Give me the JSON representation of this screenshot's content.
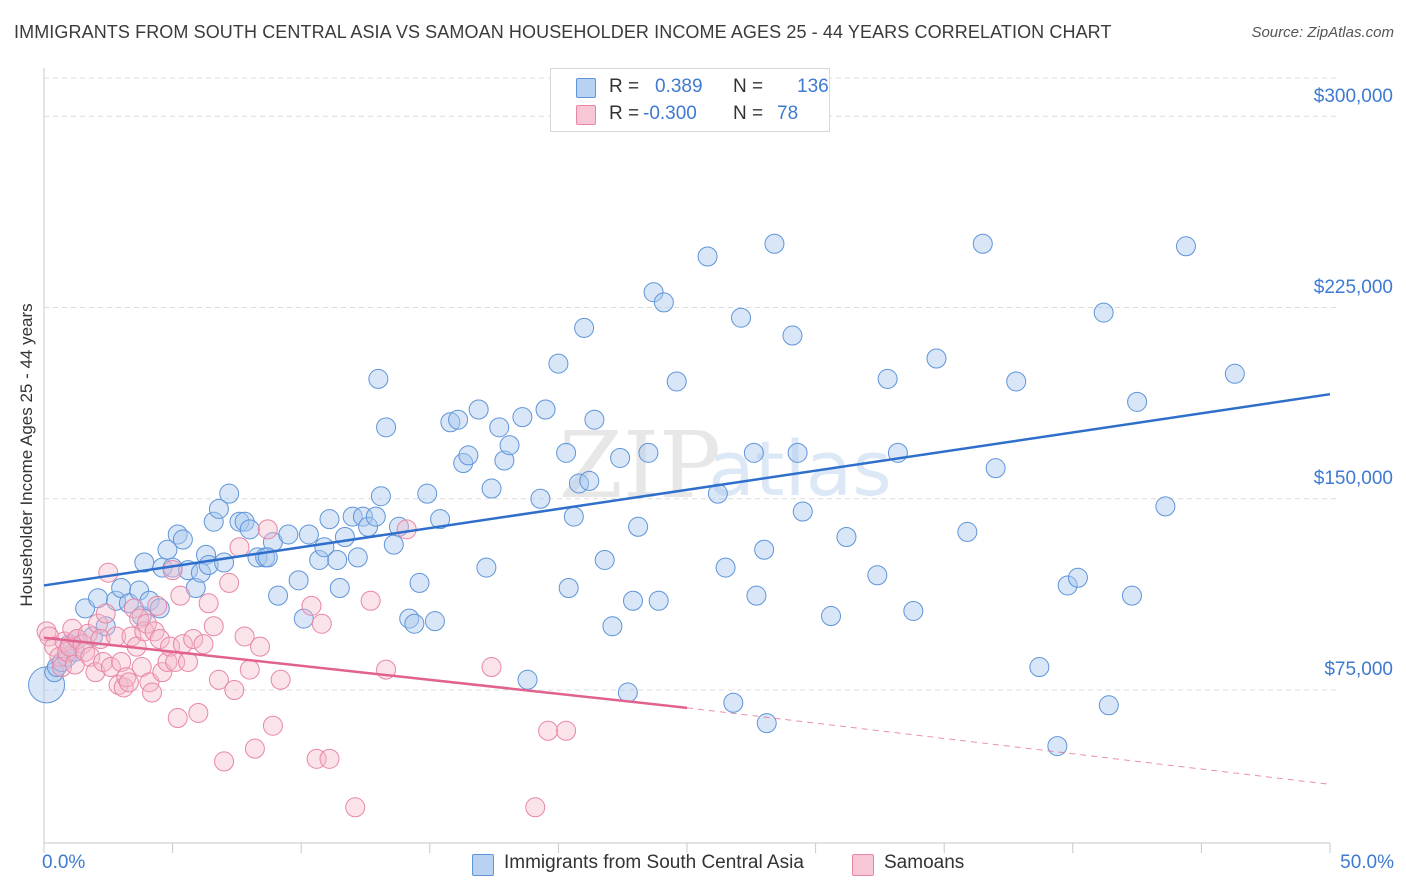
{
  "title": "IMMIGRANTS FROM SOUTH CENTRAL ASIA VS SAMOAN HOUSEHOLDER INCOME AGES 25 - 44 YEARS CORRELATION CHART",
  "source": "Source: ZipAtlas.com",
  "watermark": {
    "zip": "ZIP",
    "atlas": "atlas"
  },
  "legend_top": {
    "rows": [
      {
        "r_label": "R =",
        "r_value": "0.389",
        "n_label": "N =",
        "n_value": "136"
      },
      {
        "r_label": "R =",
        "r_value": "-0.300",
        "n_label": "N =",
        "n_value": "78"
      }
    ]
  },
  "legend_bottom": [
    "Immigrants from South Central Asia",
    "Samoans"
  ],
  "colors": {
    "blue_fill": "#a9c7ee",
    "blue_stroke": "#5f95d9",
    "blue_line": "#2f6fcc",
    "pink_fill": "#f5b8cb",
    "pink_stroke": "#e886a6",
    "pink_line": "#e0628d",
    "axis_text": "#3e7ad1",
    "grid": "#dcdcdc"
  },
  "chart_data": {
    "type": "scatter",
    "title": "IMMIGRANTS FROM SOUTH CENTRAL ASIA VS SAMOAN HOUSEHOLDER INCOME AGES 25 - 44 YEARS CORRELATION CHART",
    "xlabel": "",
    "ylabel": "Householder Income Ages 25 - 44 years",
    "xlim": [
      0,
      50
    ],
    "ylim": [
      15000,
      315000
    ],
    "x_tick_labels": [
      "0.0%",
      "50.0%"
    ],
    "y_ticks": [
      75000,
      150000,
      225000,
      300000
    ],
    "y_tick_labels": [
      "$75,000",
      "$150,000",
      "$225,000",
      "$300,000"
    ],
    "grid": true,
    "legend_position": "top-center",
    "series": [
      {
        "name": "Immigrants from South Central Asia",
        "R": 0.389,
        "N": 136,
        "trend": {
          "x": [
            0,
            50
          ],
          "y": [
            116000,
            191000
          ]
        },
        "points": [
          [
            0.1,
            77000
          ],
          [
            0.4,
            82000
          ],
          [
            0.5,
            84000
          ],
          [
            0.7,
            86000
          ],
          [
            0.9,
            88000
          ],
          [
            1.0,
            93000
          ],
          [
            1.2,
            90000
          ],
          [
            1.3,
            95000
          ],
          [
            1.6,
            107000
          ],
          [
            1.9,
            96000
          ],
          [
            2.1,
            111000
          ],
          [
            2.4,
            100000
          ],
          [
            2.8,
            110000
          ],
          [
            3.0,
            115000
          ],
          [
            3.3,
            109000
          ],
          [
            3.7,
            114000
          ],
          [
            3.8,
            104000
          ],
          [
            3.9,
            125000
          ],
          [
            4.1,
            110000
          ],
          [
            4.6,
            123000
          ],
          [
            4.5,
            107000
          ],
          [
            4.8,
            130000
          ],
          [
            5.0,
            123000
          ],
          [
            5.2,
            136000
          ],
          [
            5.4,
            134000
          ],
          [
            5.6,
            122000
          ],
          [
            5.9,
            115000
          ],
          [
            6.1,
            121000
          ],
          [
            6.3,
            128000
          ],
          [
            6.4,
            124000
          ],
          [
            6.6,
            141000
          ],
          [
            6.8,
            146000
          ],
          [
            7.0,
            125000
          ],
          [
            7.2,
            152000
          ],
          [
            7.6,
            141000
          ],
          [
            7.8,
            141000
          ],
          [
            8.0,
            138000
          ],
          [
            8.3,
            127000
          ],
          [
            8.6,
            127000
          ],
          [
            8.9,
            133000
          ],
          [
            8.7,
            127000
          ],
          [
            9.1,
            112000
          ],
          [
            9.5,
            136000
          ],
          [
            9.9,
            118000
          ],
          [
            10.1,
            103000
          ],
          [
            10.3,
            136000
          ],
          [
            10.7,
            126000
          ],
          [
            10.9,
            131000
          ],
          [
            11.1,
            142000
          ],
          [
            11.4,
            126000
          ],
          [
            11.5,
            115000
          ],
          [
            11.7,
            135000
          ],
          [
            12.0,
            143000
          ],
          [
            12.2,
            127000
          ],
          [
            12.4,
            143000
          ],
          [
            12.6,
            139000
          ],
          [
            12.9,
            143000
          ],
          [
            13.0,
            197000
          ],
          [
            13.1,
            151000
          ],
          [
            13.3,
            178000
          ],
          [
            13.6,
            132000
          ],
          [
            13.8,
            139000
          ],
          [
            14.2,
            103000
          ],
          [
            14.4,
            101000
          ],
          [
            14.6,
            117000
          ],
          [
            14.9,
            152000
          ],
          [
            15.2,
            102000
          ],
          [
            15.4,
            142000
          ],
          [
            15.8,
            180000
          ],
          [
            16.1,
            181000
          ],
          [
            16.3,
            164000
          ],
          [
            16.5,
            167000
          ],
          [
            16.9,
            185000
          ],
          [
            17.2,
            123000
          ],
          [
            17.4,
            154000
          ],
          [
            17.7,
            178000
          ],
          [
            17.9,
            165000
          ],
          [
            18.1,
            171000
          ],
          [
            18.6,
            182000
          ],
          [
            18.8,
            79000
          ],
          [
            19.3,
            150000
          ],
          [
            19.5,
            185000
          ],
          [
            20.0,
            203000
          ],
          [
            20.3,
            168000
          ],
          [
            20.4,
            115000
          ],
          [
            20.6,
            143000
          ],
          [
            20.8,
            156000
          ],
          [
            21.0,
            217000
          ],
          [
            21.2,
            157000
          ],
          [
            21.4,
            181000
          ],
          [
            21.8,
            126000
          ],
          [
            22.1,
            100000
          ],
          [
            22.4,
            166000
          ],
          [
            22.7,
            74000
          ],
          [
            22.9,
            110000
          ],
          [
            23.1,
            139000
          ],
          [
            23.5,
            168000
          ],
          [
            23.7,
            231000
          ],
          [
            23.9,
            110000
          ],
          [
            24.1,
            227000
          ],
          [
            24.6,
            196000
          ],
          [
            25.8,
            245000
          ],
          [
            26.2,
            152000
          ],
          [
            26.5,
            123000
          ],
          [
            26.8,
            70000
          ],
          [
            27.1,
            221000
          ],
          [
            27.6,
            168000
          ],
          [
            27.7,
            112000
          ],
          [
            28.0,
            130000
          ],
          [
            28.1,
            62000
          ],
          [
            28.4,
            250000
          ],
          [
            29.1,
            214000
          ],
          [
            29.3,
            168000
          ],
          [
            29.5,
            145000
          ],
          [
            30.6,
            104000
          ],
          [
            31.2,
            135000
          ],
          [
            32.4,
            120000
          ],
          [
            32.8,
            197000
          ],
          [
            33.2,
            168000
          ],
          [
            33.8,
            106000
          ],
          [
            34.7,
            205000
          ],
          [
            35.9,
            137000
          ],
          [
            36.5,
            250000
          ],
          [
            37.0,
            162000
          ],
          [
            37.8,
            196000
          ],
          [
            38.7,
            84000
          ],
          [
            39.4,
            53000
          ],
          [
            39.8,
            116000
          ],
          [
            40.2,
            119000
          ],
          [
            41.2,
            223000
          ],
          [
            41.4,
            69000
          ],
          [
            42.3,
            112000
          ],
          [
            42.5,
            188000
          ],
          [
            43.6,
            147000
          ],
          [
            44.4,
            249000
          ],
          [
            46.3,
            199000
          ]
        ]
      },
      {
        "name": "Samoans",
        "R": -0.3,
        "N": 78,
        "trend": {
          "x": [
            0,
            25
          ],
          "y": [
            95500,
            68000
          ]
        },
        "trend_dashed_extension": {
          "x": [
            25,
            50
          ],
          "y": [
            68000,
            38000
          ]
        },
        "points": [
          [
            0.1,
            98000
          ],
          [
            0.2,
            96000
          ],
          [
            0.4,
            92000
          ],
          [
            0.6,
            88000
          ],
          [
            0.7,
            84000
          ],
          [
            0.8,
            94000
          ],
          [
            0.9,
            90000
          ],
          [
            1.0,
            92000
          ],
          [
            1.1,
            99000
          ],
          [
            1.2,
            85000
          ],
          [
            1.3,
            95000
          ],
          [
            1.5,
            93000
          ],
          [
            1.6,
            90000
          ],
          [
            1.7,
            97000
          ],
          [
            1.8,
            88000
          ],
          [
            2.0,
            82000
          ],
          [
            2.1,
            101000
          ],
          [
            2.2,
            95000
          ],
          [
            2.3,
            86000
          ],
          [
            2.4,
            105000
          ],
          [
            2.5,
            121000
          ],
          [
            2.6,
            84000
          ],
          [
            2.8,
            96000
          ],
          [
            2.9,
            77000
          ],
          [
            3.0,
            86000
          ],
          [
            3.1,
            76000
          ],
          [
            3.2,
            80000
          ],
          [
            3.3,
            78000
          ],
          [
            3.4,
            96000
          ],
          [
            3.5,
            107000
          ],
          [
            3.6,
            92000
          ],
          [
            3.7,
            103000
          ],
          [
            3.8,
            84000
          ],
          [
            3.9,
            98000
          ],
          [
            4.0,
            101000
          ],
          [
            4.1,
            78000
          ],
          [
            4.2,
            74000
          ],
          [
            4.3,
            98000
          ],
          [
            4.4,
            108000
          ],
          [
            4.5,
            95000
          ],
          [
            4.6,
            82000
          ],
          [
            4.8,
            86000
          ],
          [
            4.9,
            92000
          ],
          [
            5.0,
            122000
          ],
          [
            5.1,
            86000
          ],
          [
            5.2,
            64000
          ],
          [
            5.3,
            112000
          ],
          [
            5.4,
            93000
          ],
          [
            5.6,
            86000
          ],
          [
            5.8,
            95000
          ],
          [
            6.0,
            66000
          ],
          [
            6.2,
            93000
          ],
          [
            6.4,
            109000
          ],
          [
            6.6,
            100000
          ],
          [
            6.8,
            79000
          ],
          [
            7.0,
            47000
          ],
          [
            7.2,
            117000
          ],
          [
            7.4,
            75000
          ],
          [
            7.6,
            131000
          ],
          [
            7.8,
            96000
          ],
          [
            8.0,
            83000
          ],
          [
            8.2,
            52000
          ],
          [
            8.4,
            92000
          ],
          [
            8.7,
            138000
          ],
          [
            8.9,
            61000
          ],
          [
            9.2,
            79000
          ],
          [
            10.4,
            108000
          ],
          [
            10.6,
            48000
          ],
          [
            10.8,
            101000
          ],
          [
            11.1,
            48000
          ],
          [
            12.1,
            29000
          ],
          [
            12.7,
            110000
          ],
          [
            13.3,
            83000
          ],
          [
            14.1,
            138000
          ],
          [
            17.4,
            84000
          ],
          [
            19.1,
            29000
          ],
          [
            19.6,
            59000
          ],
          [
            20.3,
            59000
          ]
        ]
      }
    ]
  }
}
